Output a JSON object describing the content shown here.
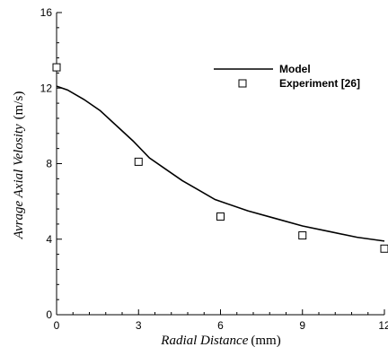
{
  "chart_data": {
    "type": "line",
    "xlabel": "Radial Distance",
    "xunit": "(mm)",
    "ylabel": "Avrage Axial Velosity",
    "yunit": "(m/s)",
    "xlim": [
      0,
      12
    ],
    "ylim": [
      0,
      16
    ],
    "xticks": [
      "0",
      "3",
      "6",
      "9",
      "12"
    ],
    "yticks": [
      "0",
      "4",
      "8",
      "12",
      "16"
    ],
    "grid": false,
    "legend_position": "top-right",
    "series": [
      {
        "name": "Model",
        "kind": "line",
        "color": "#000000",
        "x": [
          0,
          0.4,
          1,
          1.6,
          2.2,
          2.8,
          3.4,
          4,
          4.6,
          5.2,
          5.8,
          6,
          7,
          8,
          9,
          10,
          11,
          12
        ],
        "y": [
          12.1,
          11.9,
          11.4,
          10.8,
          10.0,
          9.2,
          8.3,
          7.7,
          7.1,
          6.6,
          6.1,
          6.0,
          5.5,
          5.1,
          4.7,
          4.4,
          4.1,
          3.9
        ]
      },
      {
        "name": "Experiment [26]",
        "kind": "marker",
        "marker": "square",
        "color": "#000000",
        "x": [
          0,
          3,
          6,
          9,
          12
        ],
        "y": [
          13.1,
          8.1,
          5.2,
          4.2,
          3.5
        ]
      }
    ]
  }
}
